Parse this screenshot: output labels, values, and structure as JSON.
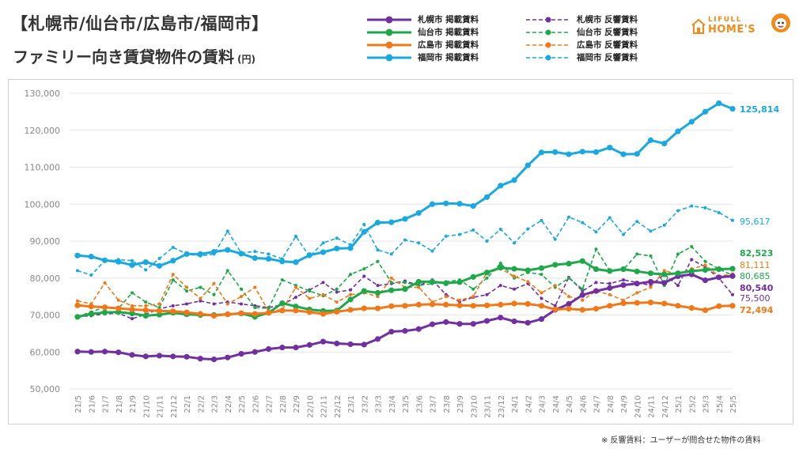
{
  "title_line1": "【札幌市/仙台市/広島市/福岡市】",
  "title_line2": "ファミリー向き賃貸物件の賃料",
  "title_unit": "(円)",
  "logo": {
    "top": "LIFULL",
    "bottom": "HOME'S",
    "color": "#f08c1e"
  },
  "footnote": "※ 反響賃料：ユーザーが問合せた物件の賃料",
  "chart_data": {
    "type": "line",
    "ylim": [
      50000,
      130000
    ],
    "yticks": [
      50000,
      60000,
      70000,
      80000,
      90000,
      100000,
      110000,
      120000,
      130000
    ],
    "ytick_labels": [
      "50,000",
      "60,000",
      "70,000",
      "80,000",
      "90,000",
      "100,000",
      "110,000",
      "120,000",
      "130,000"
    ],
    "grid": true,
    "legend_position": "top-right",
    "x": [
      "21/5",
      "21/6",
      "21/7",
      "21/8",
      "21/9",
      "21/10",
      "21/11",
      "21/12",
      "22/1",
      "22/2",
      "22/3",
      "22/4",
      "22/5",
      "22/6",
      "22/7",
      "22/8",
      "22/9",
      "22/10",
      "22/11",
      "22/12",
      "23/1",
      "23/2",
      "23/3",
      "23/4",
      "23/5",
      "23/6",
      "23/7",
      "23/8",
      "23/9",
      "23/10",
      "23/11",
      "23/12",
      "24/1",
      "24/2",
      "24/3",
      "24/4",
      "24/5",
      "24/6",
      "24/7",
      "24/8",
      "24/9",
      "24/10",
      "24/11",
      "24/12",
      "25/1",
      "25/2",
      "25/3",
      "25/4",
      "25/5"
    ],
    "series": [
      {
        "name": "札幌市 掲載賃料",
        "color": "#7030a0",
        "dashed": false,
        "end_label": "80,540",
        "values": [
          60100,
          60000,
          60100,
          59900,
          59200,
          58800,
          59000,
          58800,
          58700,
          58200,
          58000,
          58500,
          59500,
          60000,
          60800,
          61200,
          61200,
          61900,
          62800,
          62300,
          62100,
          62000,
          63500,
          65500,
          65700,
          66200,
          67500,
          68100,
          67600,
          67600,
          68400,
          69300,
          68300,
          67900,
          68900,
          71400,
          73000,
          75400,
          76500,
          77300,
          78100,
          78500,
          79000,
          78700,
          80500,
          81000,
          79400,
          80200,
          80540
        ]
      },
      {
        "name": "仙台市 掲載賃料",
        "color": "#1fa84a",
        "dashed": false,
        "end_label": "82,523",
        "values": [
          69500,
          70300,
          70700,
          70800,
          70400,
          69800,
          70100,
          70600,
          70200,
          70000,
          70000,
          70200,
          70400,
          69500,
          70600,
          73200,
          72300,
          71500,
          71100,
          71200,
          74200,
          76500,
          76000,
          76700,
          77000,
          79000,
          79000,
          78600,
          78900,
          80300,
          81500,
          82800,
          82500,
          82100,
          82700,
          83600,
          83900,
          84600,
          82400,
          81900,
          82400,
          81800,
          81300,
          81000,
          81300,
          81900,
          82200,
          82400,
          82523
        ]
      },
      {
        "name": "広島市 掲載賃料",
        "color": "#f07818",
        "dashed": false,
        "end_label": "72,494",
        "values": [
          72600,
          72300,
          72100,
          71800,
          71500,
          71300,
          71100,
          71000,
          70700,
          70300,
          69800,
          70200,
          70500,
          70300,
          70600,
          71200,
          71200,
          70800,
          70300,
          70900,
          71400,
          71800,
          71800,
          72400,
          72500,
          72800,
          72900,
          72800,
          72600,
          72500,
          72600,
          72800,
          73100,
          73000,
          72500,
          71500,
          71700,
          71400,
          71700,
          72500,
          73200,
          73300,
          73400,
          73100,
          72500,
          71900,
          71300,
          72400,
          72494
        ]
      },
      {
        "name": "福岡市 掲載賃料",
        "color": "#19a8e0",
        "dashed": false,
        "end_label": "125,814",
        "values": [
          86100,
          85800,
          84800,
          84400,
          83500,
          84300,
          83300,
          84700,
          86500,
          86500,
          87100,
          87600,
          86600,
          85400,
          85200,
          84500,
          84300,
          86200,
          87000,
          88000,
          88100,
          92500,
          95000,
          95100,
          96000,
          97600,
          100000,
          100200,
          100100,
          99500,
          101900,
          105000,
          106500,
          110500,
          114000,
          114100,
          113500,
          114200,
          114100,
          115300,
          113500,
          113600,
          117300,
          116400,
          119700,
          122300,
          125000,
          127300,
          125814
        ]
      },
      {
        "name": "札幌市 反響賃料",
        "color": "#7030a0",
        "dashed": true,
        "end_label": "75,500",
        "values": [
          69600,
          69800,
          70300,
          70500,
          69000,
          70200,
          71700,
          72500,
          73000,
          73800,
          73000,
          73500,
          73000,
          72500,
          72000,
          72800,
          74800,
          76800,
          78800,
          76200,
          76800,
          80500,
          78000,
          78500,
          79200,
          78000,
          79500,
          75500,
          73600,
          74800,
          75500,
          78000,
          77000,
          78500,
          74500,
          72500,
          80200,
          76500,
          78800,
          78500,
          79500,
          78800,
          78000,
          81000,
          78000,
          85000,
          83000,
          80000,
          75500
        ]
      },
      {
        "name": "仙台市 反響賃料",
        "color": "#1fa84a",
        "dashed": true,
        "end_label": "80,685",
        "values": [
          69600,
          70800,
          72200,
          71800,
          76000,
          73500,
          72000,
          79500,
          76500,
          77500,
          75500,
          82000,
          77000,
          72000,
          71800,
          79500,
          78000,
          76500,
          75200,
          77000,
          81000,
          82500,
          84500,
          78800,
          78800,
          78000,
          78500,
          79000,
          79500,
          77000,
          80000,
          84000,
          80000,
          81500,
          81000,
          77500,
          80000,
          77000,
          87800,
          82000,
          82300,
          86500,
          86000,
          78000,
          86500,
          88500,
          84500,
          82500,
          80685
        ]
      },
      {
        "name": "広島市 反響賃料",
        "color": "#f07818",
        "dashed": true,
        "end_label": "81,111",
        "values": [
          73800,
          73000,
          78700,
          74000,
          72500,
          72500,
          73000,
          81000,
          77500,
          74500,
          78500,
          73000,
          75000,
          77500,
          71000,
          71500,
          77500,
          74500,
          75500,
          73500,
          75500,
          76000,
          75000,
          80000,
          77500,
          77500,
          73500,
          75000,
          74000,
          75000,
          81500,
          82500,
          80500,
          79000,
          76000,
          78000,
          75000,
          74000,
          76500,
          75500,
          74000,
          76000,
          77500,
          82000,
          81000,
          82500,
          83500,
          80500,
          81111
        ]
      },
      {
        "name": "福岡市 反響賃料",
        "color": "#19a8e0",
        "dashed": true,
        "end_label": "95,617",
        "values": [
          82000,
          80800,
          84700,
          85000,
          84700,
          82200,
          85300,
          88300,
          86500,
          86000,
          86500,
          92700,
          86800,
          87200,
          86500,
          85200,
          91300,
          85800,
          89500,
          90800,
          89000,
          94500,
          87600,
          86500,
          90300,
          89500,
          87300,
          91300,
          91800,
          93000,
          90000,
          93200,
          89500,
          93300,
          95600,
          90500,
          96500,
          95000,
          92500,
          96300,
          91800,
          95300,
          92700,
          94300,
          98200,
          99500,
          99000,
          97700,
          95617
        ]
      }
    ]
  }
}
